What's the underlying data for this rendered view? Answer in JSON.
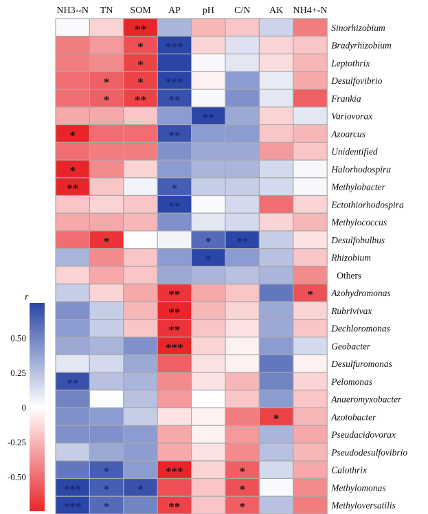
{
  "chart_data": {
    "type": "heatmap",
    "columns": [
      "NH3--N",
      "TN",
      "SOM",
      "AP",
      "pH",
      "C/N",
      "AK",
      "NH4+-N"
    ],
    "rows": [
      "Sinorhizobium",
      "Bradyrhizobium",
      "Leptothrix",
      "Desulfovibrio",
      "Frankia",
      "Variovorax",
      "Azoarcus",
      "Unidentified",
      "Halorhodospira",
      "Methylobacter",
      "Ectothiorhodospira",
      "Methylococcus",
      "Desulfobulbus",
      "Rhizobium",
      "Others",
      "Azohydromonas",
      "Rubrivivax",
      "Dechloromonas",
      "Geobacter",
      "Desulfuromonas",
      "Pelomonas",
      "Anaeromyxobacter",
      "Azotobacter",
      "Pseudacidovorax",
      "Pseudodesulfovibrio",
      "Calothrix",
      "Methylomonas",
      "Methyloversatilis"
    ],
    "italic_rows": [
      true,
      true,
      true,
      true,
      true,
      true,
      true,
      true,
      true,
      true,
      true,
      true,
      true,
      true,
      false,
      true,
      true,
      true,
      true,
      true,
      true,
      true,
      true,
      true,
      true,
      true,
      true,
      true
    ],
    "values": [
      [
        0.02,
        -0.15,
        -0.75,
        0.3,
        -0.25,
        -0.2,
        0.18,
        -0.45
      ],
      [
        -0.45,
        -0.35,
        -0.6,
        0.8,
        -0.15,
        0.12,
        -0.15,
        -0.2
      ],
      [
        -0.45,
        -0.4,
        -0.65,
        0.85,
        0.03,
        0.1,
        -0.12,
        -0.25
      ],
      [
        -0.5,
        -0.55,
        -0.65,
        0.75,
        -0.05,
        0.4,
        0.08,
        -0.3
      ],
      [
        -0.5,
        -0.55,
        -0.65,
        0.7,
        0.03,
        0.45,
        0.1,
        -0.55
      ],
      [
        -0.3,
        -0.3,
        -0.2,
        0.4,
        0.8,
        0.35,
        -0.15,
        0.1
      ],
      [
        -0.75,
        -0.5,
        -0.5,
        0.7,
        0.4,
        0.4,
        -0.2,
        -0.25
      ],
      [
        -0.5,
        -0.45,
        -0.45,
        0.45,
        0.35,
        0.35,
        -0.35,
        -0.2
      ],
      [
        -0.75,
        -0.4,
        -0.15,
        0.4,
        0.3,
        0.3,
        0.15,
        0.03
      ],
      [
        -0.75,
        -0.2,
        0.05,
        0.65,
        0.2,
        0.2,
        0.15,
        0.03
      ],
      [
        -0.2,
        -0.15,
        -0.2,
        0.8,
        0.02,
        0.15,
        -0.5,
        -0.15
      ],
      [
        -0.3,
        -0.3,
        -0.25,
        0.45,
        0.1,
        0.15,
        -0.15,
        -0.25
      ],
      [
        -0.5,
        -0.7,
        0.01,
        0.05,
        0.6,
        0.75,
        0.2,
        -0.1
      ],
      [
        0.3,
        -0.4,
        -0.2,
        0.4,
        0.75,
        0.4,
        0.25,
        -0.2
      ],
      [
        -0.15,
        -0.3,
        -0.2,
        0.35,
        0.3,
        0.25,
        0.3,
        -0.4
      ],
      [
        0.2,
        -0.15,
        -0.3,
        -0.7,
        -0.3,
        -0.2,
        0.55,
        -0.6
      ],
      [
        0.45,
        0.2,
        -0.25,
        -0.75,
        -0.25,
        -0.15,
        0.35,
        -0.15
      ],
      [
        0.4,
        0.2,
        -0.2,
        -0.7,
        -0.2,
        -0.1,
        0.35,
        -0.2
      ],
      [
        0.35,
        0.3,
        0.45,
        -0.85,
        -0.15,
        -0.05,
        0.4,
        0.15
      ],
      [
        0.1,
        0.15,
        0.35,
        -0.55,
        -0.1,
        -0.05,
        0.55,
        -0.05
      ],
      [
        0.7,
        0.25,
        0.3,
        -0.4,
        -0.1,
        -0.25,
        0.5,
        -0.15
      ],
      [
        0.5,
        0.01,
        0.25,
        -0.35,
        0.0,
        -0.2,
        0.4,
        -0.2
      ],
      [
        0.45,
        0.4,
        0.2,
        -0.1,
        -0.05,
        -0.45,
        -0.65,
        -0.25
      ],
      [
        0.45,
        0.45,
        0.4,
        -0.3,
        -0.05,
        -0.35,
        0.3,
        -0.3
      ],
      [
        0.2,
        0.35,
        0.4,
        -0.3,
        -0.1,
        -0.4,
        0.25,
        -0.25
      ],
      [
        0.55,
        0.65,
        0.4,
        -0.85,
        -0.15,
        -0.55,
        0.15,
        -0.3
      ],
      [
        0.8,
        0.65,
        0.7,
        -0.6,
        -0.2,
        -0.6,
        0.02,
        -0.4
      ],
      [
        0.8,
        0.6,
        0.5,
        -0.65,
        -0.2,
        -0.55,
        0.25,
        -0.45
      ]
    ],
    "significance": [
      [
        "",
        "",
        "**",
        "",
        "",
        "",
        "",
        ""
      ],
      [
        "",
        "",
        "*",
        "***",
        "",
        "",
        "",
        ""
      ],
      [
        "",
        "",
        "*",
        "",
        "",
        "",
        "",
        ""
      ],
      [
        "",
        "*",
        "*",
        "***",
        "",
        "",
        "",
        ""
      ],
      [
        "",
        "*",
        "**",
        "**",
        "",
        "",
        "",
        ""
      ],
      [
        "",
        "",
        "",
        "",
        "**",
        "",
        "",
        ""
      ],
      [
        "*",
        "",
        "",
        "**",
        "",
        "",
        "",
        ""
      ],
      [
        "",
        "",
        "",
        "",
        "",
        "",
        "",
        ""
      ],
      [
        "*",
        "",
        "",
        "",
        "",
        "",
        "",
        ""
      ],
      [
        "**",
        "",
        "",
        "*",
        "",
        "",
        "",
        ""
      ],
      [
        "",
        "",
        "",
        "**",
        "",
        "",
        "",
        ""
      ],
      [
        "",
        "",
        "",
        "",
        "",
        "",
        "",
        ""
      ],
      [
        "",
        "*",
        "",
        "",
        "*",
        "**",
        "",
        ""
      ],
      [
        "",
        "",
        "",
        "",
        "*",
        "",
        "",
        ""
      ],
      [
        "",
        "",
        "",
        "",
        "",
        "",
        "",
        ""
      ],
      [
        "",
        "",
        "",
        "**",
        "",
        "",
        "",
        "*"
      ],
      [
        "",
        "",
        "",
        "**",
        "",
        "",
        "",
        ""
      ],
      [
        "",
        "",
        "",
        "**",
        "",
        "",
        "",
        ""
      ],
      [
        "",
        "",
        "",
        "***",
        "",
        "",
        "",
        ""
      ],
      [
        "",
        "",
        "",
        "",
        "",
        "",
        "",
        ""
      ],
      [
        "**",
        "",
        "",
        "",
        "",
        "",
        "",
        ""
      ],
      [
        "",
        "",
        "",
        "",
        "",
        "",
        "",
        ""
      ],
      [
        "",
        "",
        "",
        "",
        "",
        "",
        "*",
        ""
      ],
      [
        "",
        "",
        "",
        "",
        "",
        "",
        "",
        ""
      ],
      [
        "",
        "",
        "",
        "",
        "",
        "",
        "",
        ""
      ],
      [
        "",
        "*",
        "",
        "***",
        "",
        "*",
        "",
        ""
      ],
      [
        "***",
        "*",
        "*",
        "",
        "",
        "*",
        "",
        ""
      ],
      [
        "***",
        "*",
        "",
        "**",
        "",
        "*",
        "",
        ""
      ]
    ],
    "colorbar": {
      "title": "r",
      "ticks": [
        0.5,
        0.25,
        0,
        -0.25,
        -0.5
      ],
      "tick_labels": [
        "0.50",
        "0.25",
        "0",
        "-0.25",
        "-0.50"
      ],
      "range": [
        -0.75,
        0.75
      ],
      "colors": {
        "low": "#e8262a",
        "mid": "#ffffff",
        "high": "#2a46a6"
      }
    }
  }
}
